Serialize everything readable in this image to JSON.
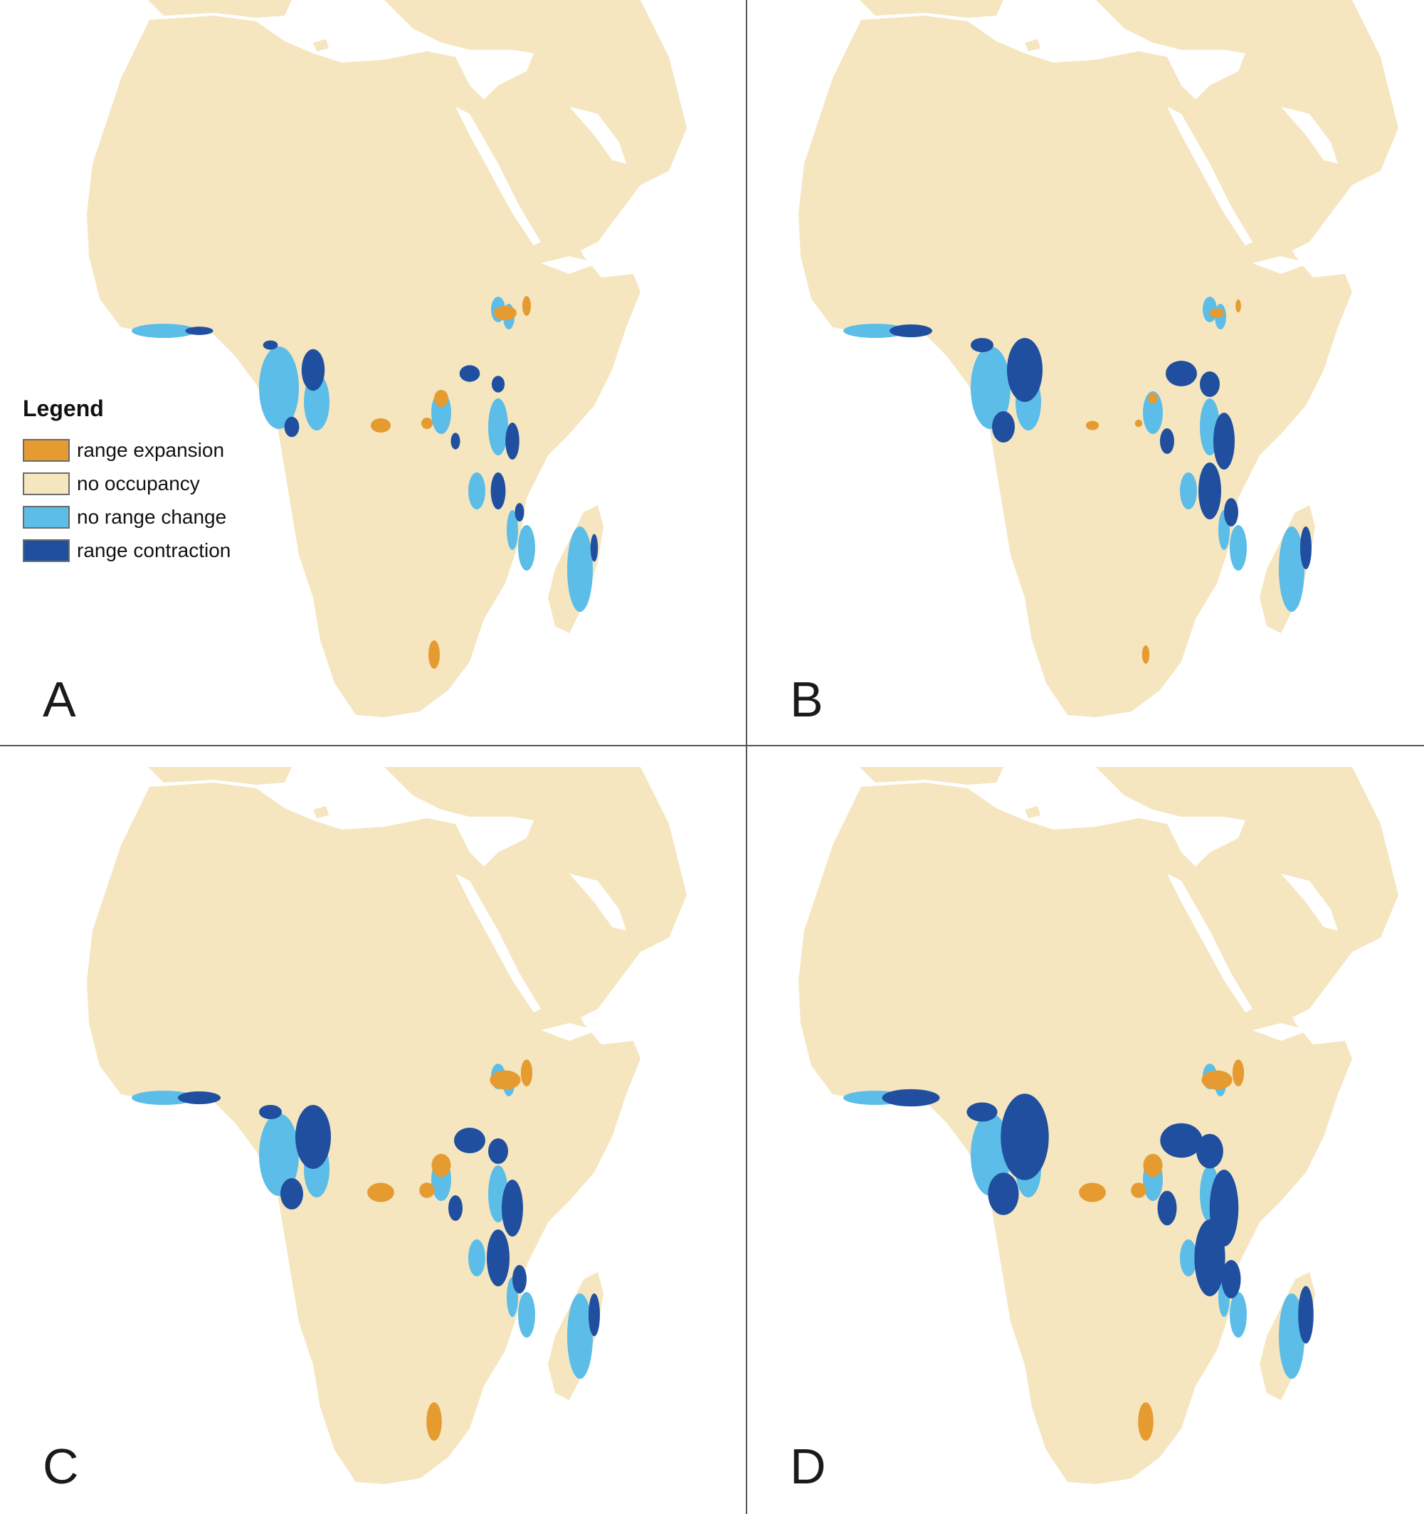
{
  "colors": {
    "land": "#f5e6c0",
    "sea": "#ffffff",
    "range_expansion": "#e59b2f",
    "no_occupancy": "#f5e6c0",
    "no_range_change": "#5bbde8",
    "range_contraction": "#1f4f9e"
  },
  "legend": {
    "title": "Legend",
    "items": [
      {
        "label": "range expansion",
        "color": "#e59b2f"
      },
      {
        "label": "no occupancy",
        "color": "#f5e6c0"
      },
      {
        "label": "no range change",
        "color": "#5bbde8"
      },
      {
        "label": "range contraction",
        "color": "#1f4f9e"
      }
    ]
  },
  "panels": [
    {
      "label": "A",
      "expansion_level": "moderate",
      "contraction_level": "low"
    },
    {
      "label": "B",
      "expansion_level": "low",
      "contraction_level": "moderate"
    },
    {
      "label": "C",
      "expansion_level": "high",
      "contraction_level": "moderate"
    },
    {
      "label": "D",
      "expansion_level": "high",
      "contraction_level": "high"
    }
  ]
}
